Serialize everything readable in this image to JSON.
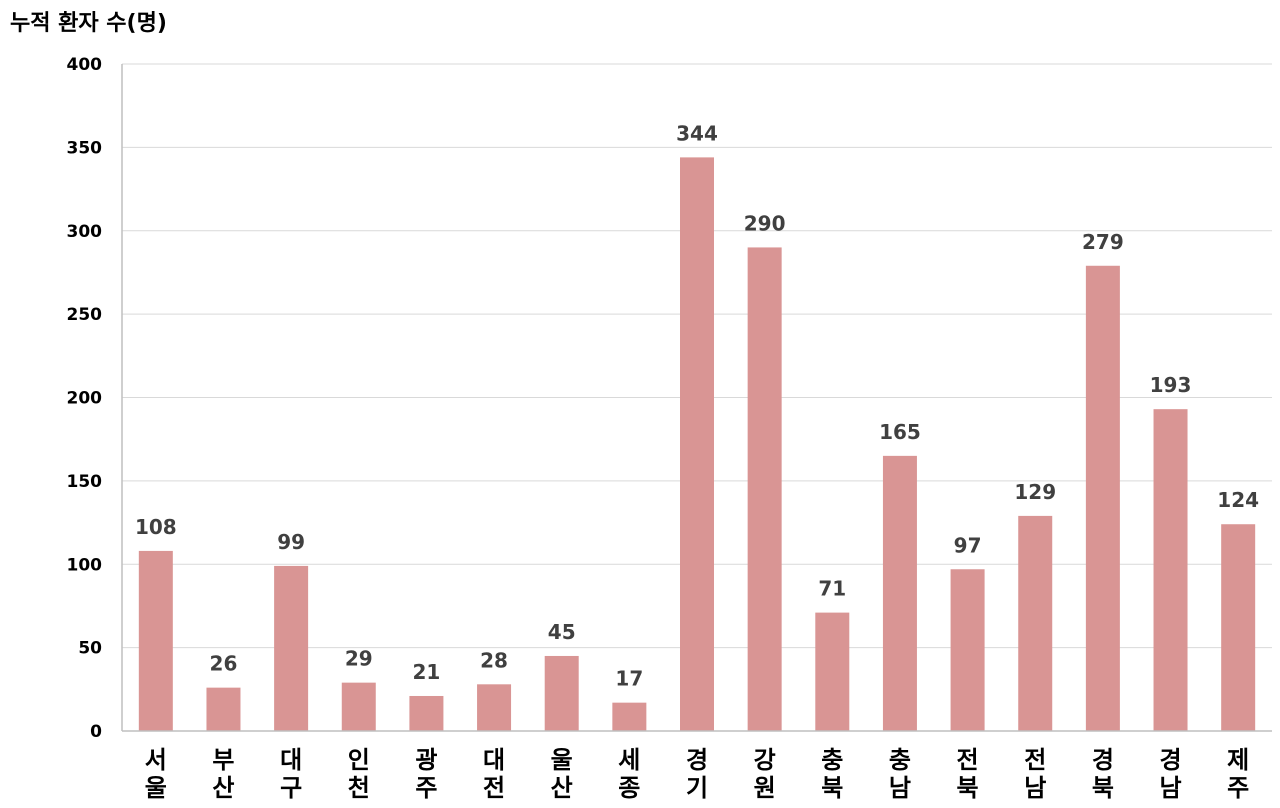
{
  "chart_data": {
    "type": "bar",
    "ylabel": "누적 환자 수(명)",
    "categories": [
      "서울",
      "부산",
      "대구",
      "인천",
      "광주",
      "대전",
      "울산",
      "세종",
      "경기",
      "강원",
      "충북",
      "충남",
      "전북",
      "전남",
      "경북",
      "경남",
      "제주"
    ],
    "values": [
      108,
      26,
      99,
      29,
      21,
      28,
      45,
      17,
      344,
      290,
      71,
      165,
      97,
      129,
      279,
      193,
      124
    ],
    "ylim": [
      0,
      400
    ],
    "yticks": [
      0,
      50,
      100,
      150,
      200,
      250,
      300,
      350,
      400
    ],
    "grid": true,
    "bar_color": "#d99594",
    "data_labels": true
  }
}
